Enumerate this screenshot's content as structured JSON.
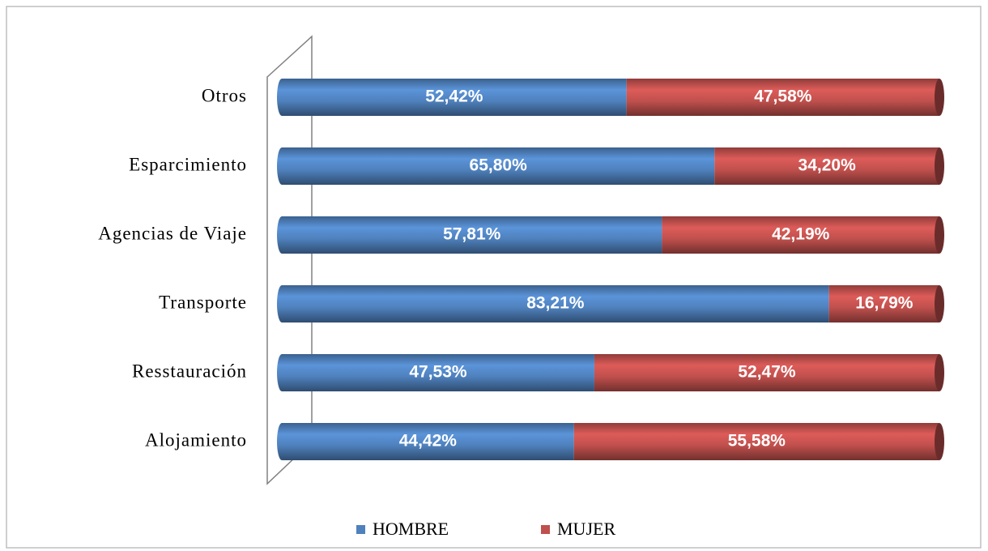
{
  "chart_data": {
    "type": "stacked-bar-horizontal",
    "categories": [
      "Otros",
      "Esparcimiento",
      "Agencias de Viaje",
      "Transporte",
      "Resstauración",
      "Alojamiento"
    ],
    "series": [
      {
        "name": "HOMBRE",
        "color": "#4f81bd",
        "values": [
          52.42,
          65.8,
          57.81,
          83.21,
          47.53,
          44.42
        ],
        "value_labels": [
          "52,42%",
          "65,80%",
          "57,81%",
          "83,21%",
          "47,53%",
          "44,42%"
        ]
      },
      {
        "name": "MUJER",
        "color": "#c0504d",
        "values": [
          47.58,
          34.2,
          42.19,
          16.79,
          52.47,
          55.58
        ],
        "value_labels": [
          "47,58%",
          "34,20%",
          "42,19%",
          "16,79%",
          "52,47%",
          "55,58%"
        ]
      }
    ],
    "xlim": [
      0,
      100
    ]
  }
}
